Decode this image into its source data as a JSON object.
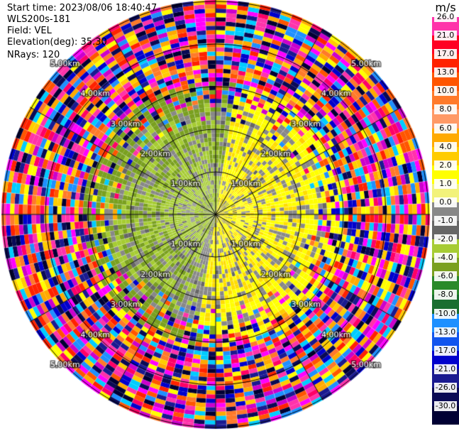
{
  "header": {
    "start_time": "Start time: 2023/08/06 18:40:47",
    "site": "WLS200s-181",
    "field": "Field: VEL",
    "elevation": "Elevation(deg): 35.30",
    "nrays": "NRays: 120"
  },
  "range_labels": [
    "1.00km",
    "2.00km",
    "3.00km",
    "4.00km",
    "5.00km"
  ],
  "colorbar": {
    "unit": "m/s",
    "ticks": [
      "26.0",
      "21.0",
      "17.0",
      "13.0",
      "10.0",
      "8.0",
      "6.0",
      "4.0",
      "2.0",
      "1.0",
      "0.0",
      "-1.0",
      "-2.0",
      "-4.0",
      "-6.0",
      "-8.0",
      "-10.0",
      "-13.0",
      "-17.0",
      "-21.0",
      "-26.0",
      "-30.0"
    ],
    "colors": [
      "#ff33aa",
      "#ff0022",
      "#ff2200",
      "#ff5500",
      "#ff7a2a",
      "#ff9966",
      "#ffaa00",
      "#ffcc00",
      "#ffff00",
      "#f2f27a",
      "#888888",
      "#666666",
      "#a6cc33",
      "#7aa020",
      "#2a8a2a",
      "#1a6e30",
      "#1e90ff",
      "#1155ee",
      "#0000cc",
      "#1a1a90",
      "#0a0a55",
      "#000033"
    ]
  },
  "colors": {
    "ring_line": "#000000",
    "background": "#ffffff"
  }
}
